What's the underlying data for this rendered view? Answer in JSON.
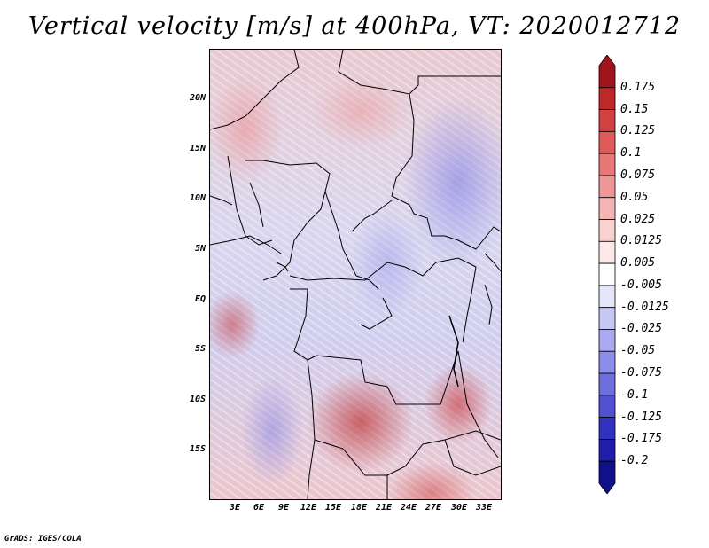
{
  "title": "Vertical velocity [m/s] at 400hPa, VT: 2020012712",
  "credit": "GrADS: IGES/COLA",
  "lat_labels": [
    "20N",
    "15N",
    "10N",
    "5N",
    "EQ",
    "5S",
    "10S",
    "15S"
  ],
  "lon_labels": [
    "3E",
    "6E",
    "9E",
    "12E",
    "15E",
    "18E",
    "21E",
    "24E",
    "27E",
    "30E",
    "33E"
  ],
  "colorbar": {
    "labels": [
      "0.175",
      "0.15",
      "0.125",
      "0.1",
      "0.075",
      "0.05",
      "0.025",
      "0.0125",
      "0.005",
      "-0.005",
      "-0.0125",
      "-0.025",
      "-0.05",
      "-0.075",
      "-0.1",
      "-0.125",
      "-0.175",
      "-0.2"
    ],
    "colors": [
      "#a0141e",
      "#be2828",
      "#d24141",
      "#e15a5a",
      "#e87878",
      "#f09696",
      "#f5b4b4",
      "#fad2d2",
      "#fde8e8",
      "#ffffff",
      "#e6e6fa",
      "#c8c8f5",
      "#aaaaf0",
      "#8c8ceb",
      "#6e6ee1",
      "#5050d2",
      "#3232c0",
      "#1e1eaa",
      "#10108c"
    ]
  }
}
